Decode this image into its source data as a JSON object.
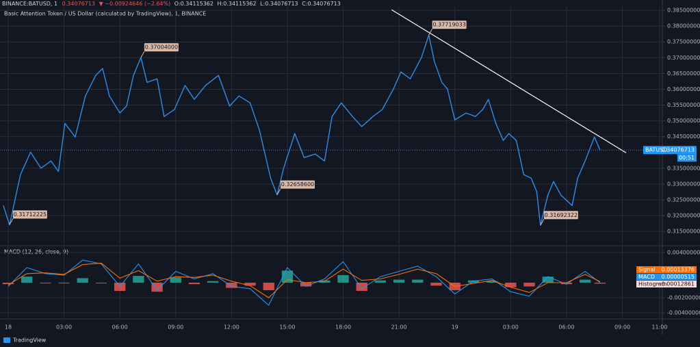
{
  "chart_data": [
    {
      "type": "line",
      "title": "BINANCE:BATUSD, 1",
      "quote": [
        "0.34076713",
        "▼ −0.00924646 (−2.64%)",
        "O:0.34115362",
        "H:0.34115362",
        "L:0.34076713",
        "C:0.34076713"
      ],
      "subtitle": "Basic Attention Token / US Dollar (calculated by TradingView), 1, BINANCE",
      "xlim": [
        -0.44,
        35.15
      ],
      "xticks": [
        {
          "value": 0,
          "label": "18"
        },
        {
          "value": 3,
          "label": "03:00"
        },
        {
          "value": 6,
          "label": "06:00"
        },
        {
          "value": 9,
          "label": "09:00"
        },
        {
          "value": 12,
          "label": "12:00"
        },
        {
          "value": 15,
          "label": "15:00"
        },
        {
          "value": 18,
          "label": "18:00"
        },
        {
          "value": 21,
          "label": "21:00"
        },
        {
          "value": 24,
          "label": "19"
        },
        {
          "value": 27,
          "label": "03:00"
        },
        {
          "value": 30,
          "label": "06:00"
        },
        {
          "value": 33,
          "label": "09:00"
        },
        {
          "value": 35,
          "label": "11:00"
        }
      ],
      "ylim": [
        0.3107,
        0.3861
      ],
      "yticks": [
        {
          "value": 0.385,
          "label": "0.38500000"
        },
        {
          "value": 0.38,
          "label": "0.38000000"
        },
        {
          "value": 0.375,
          "label": "0.37500000"
        },
        {
          "value": 0.37,
          "label": "0.37000000"
        },
        {
          "value": 0.365,
          "label": "0.36500000"
        },
        {
          "value": 0.36,
          "label": "0.36000000"
        },
        {
          "value": 0.355,
          "label": "0.35500000"
        },
        {
          "value": 0.35,
          "label": "0.35000000"
        },
        {
          "value": 0.345,
          "label": "0.34500000"
        },
        {
          "value": 0.335,
          "label": "0.33500000"
        },
        {
          "value": 0.33,
          "label": "0.33000000"
        },
        {
          "value": 0.325,
          "label": "0.32500000"
        },
        {
          "value": 0.32,
          "label": "0.32000000"
        },
        {
          "value": 0.315,
          "label": "0.31500000"
        }
      ],
      "grid": true,
      "x": [
        -0.26,
        0.07,
        0.22,
        0.66,
        1.2,
        1.76,
        2.3,
        2.7,
        3.05,
        3.6,
        4.15,
        4.7,
        5.07,
        5.44,
        6.0,
        6.36,
        6.73,
        7.13,
        7.46,
        8.0,
        8.38,
        8.93,
        9.5,
        10.0,
        10.6,
        11.3,
        11.9,
        12.4,
        13.0,
        13.5,
        14.1,
        14.45,
        14.8,
        15.4,
        15.9,
        16.5,
        17.0,
        17.4,
        17.9,
        18.5,
        19.0,
        19.6,
        20.1,
        20.7,
        21.1,
        21.6,
        22.2,
        22.6,
        22.9,
        23.3,
        23.6,
        24.0,
        24.6,
        25.1,
        25.5,
        25.8,
        26.2,
        26.6,
        26.9,
        27.3,
        27.7,
        28.1,
        28.4,
        28.6,
        29.0,
        29.3,
        29.7,
        30.3,
        30.6,
        31.0,
        31.5,
        31.8
      ],
      "series": [
        {
          "name": "BATUSD",
          "color": "#2e8de8",
          "values": [
            0.3232,
            0.31712225,
            0.3211,
            0.333,
            0.3401,
            0.335,
            0.3373,
            0.334,
            0.3492,
            0.3449,
            0.3579,
            0.3644,
            0.3666,
            0.3579,
            0.3525,
            0.3547,
            0.3644,
            0.37004,
            0.3622,
            0.3633,
            0.3514,
            0.3536,
            0.3612,
            0.3568,
            0.3612,
            0.3644,
            0.3547,
            0.3579,
            0.3557,
            0.3471,
            0.3319,
            0.326586,
            0.335,
            0.346,
            0.3384,
            0.3395,
            0.3373,
            0.3514,
            0.3557,
            0.3514,
            0.3482,
            0.3514,
            0.3536,
            0.3601,
            0.3655,
            0.3633,
            0.37,
            0.37719033,
            0.3688,
            0.3622,
            0.3601,
            0.3503,
            0.3525,
            0.3514,
            0.3536,
            0.3568,
            0.3492,
            0.3438,
            0.346,
            0.3438,
            0.333,
            0.3319,
            0.3276,
            0.31692322,
            0.3265,
            0.3308,
            0.3265,
            0.3232,
            0.3319,
            0.3373,
            0.3449,
            0.34076713
          ]
        }
      ],
      "last_price": {
        "value": 0.34076713,
        "label": "0.34076713"
      },
      "countdown": "00:51",
      "annotations": [
        {
          "x": 0.07,
          "value": 0.31712225,
          "label": "0.31712225"
        },
        {
          "x": 7.13,
          "value": 0.37004,
          "label": "0.37004000"
        },
        {
          "x": 14.45,
          "value": 0.326586,
          "label": "0.32658600"
        },
        {
          "x": 22.6,
          "value": 0.37719033,
          "label": "0.37719033"
        },
        {
          "x": 28.6,
          "value": 0.31692322,
          "label": "0.31692322"
        }
      ],
      "trendline": {
        "color": "#ffffff",
        "x": [
          20.6,
          33.2
        ],
        "values": [
          0.3852,
          0.3399
        ]
      }
    },
    {
      "type": "macd",
      "title": "MACD (12, 26, close, 9)",
      "xlim": [
        -0.44,
        35.15
      ],
      "ylim": [
        -0.00473,
        0.00482
      ],
      "yticks": [
        {
          "value": 0.004,
          "label": "0.00400000"
        },
        {
          "value": -0.002,
          "label": "-0.00200000"
        },
        {
          "value": -0.004,
          "label": "-0.00400000"
        }
      ],
      "grid": true,
      "x": [
        0,
        1,
        2,
        3,
        4,
        5,
        6,
        7,
        8,
        9,
        10,
        11,
        12,
        13,
        14,
        15,
        16,
        17,
        18,
        19,
        20,
        21,
        22,
        23,
        24,
        25,
        26,
        27,
        28,
        29,
        30,
        31,
        31.8
      ],
      "series": [
        {
          "name": "Histogram",
          "color": "#26a69a",
          "negative_color": "#ef5350",
          "label_color": "#fbdada",
          "last_label": "−0.00012861",
          "values": [
            -0.0002,
            0.0008,
            -0.0001,
            -0.0001,
            0.0006,
            -0.0001,
            -0.0011,
            0.0009,
            -0.0012,
            0.0007,
            -0.0002,
            0.0002,
            -0.0007,
            -0.0004,
            -0.001,
            0.0016,
            -0.0005,
            0.0003,
            0.001,
            -0.0011,
            0.0003,
            0.0004,
            0.0004,
            -0.0004,
            -0.001,
            0.0003,
            0.0002,
            -0.0006,
            -0.0005,
            0.0008,
            -0.0002,
            0.0004,
            -0.00012861
          ]
        },
        {
          "name": "MACD",
          "color": "#2196f3",
          "last_label": "0.00000515",
          "values": [
            -0.0005,
            0.002,
            0.0012,
            0.001,
            0.003,
            0.0025,
            -0.0005,
            0.0025,
            -0.001,
            0.0015,
            0.0005,
            0.0012,
            -0.0005,
            -0.0008,
            -0.003,
            0.002,
            -0.0005,
            0.0005,
            0.0028,
            -0.0008,
            0.0008,
            0.0015,
            0.0022,
            0.0008,
            -0.0015,
            0.0002,
            0.0005,
            -0.0012,
            -0.0018,
            0.0008,
            -0.0002,
            0.0015,
            5.15e-06
          ]
        },
        {
          "name": "Signal",
          "color": "#ff6d00",
          "last_label": "0.00013376",
          "values": [
            -0.0003,
            0.0012,
            0.0013,
            0.0011,
            0.0024,
            0.0026,
            0.0006,
            0.0016,
            0.0002,
            0.0008,
            0.0007,
            0.001,
            0.0002,
            -0.0004,
            -0.002,
            0.0004,
            0.0,
            0.0002,
            0.0018,
            0.0003,
            0.0005,
            0.0011,
            0.0018,
            0.0012,
            -0.0005,
            -0.0001,
            0.0003,
            -0.0006,
            -0.0013,
            0.0,
            0.0,
            0.0011,
            0.00013376
          ]
        }
      ]
    }
  ],
  "brand": "TradingView"
}
